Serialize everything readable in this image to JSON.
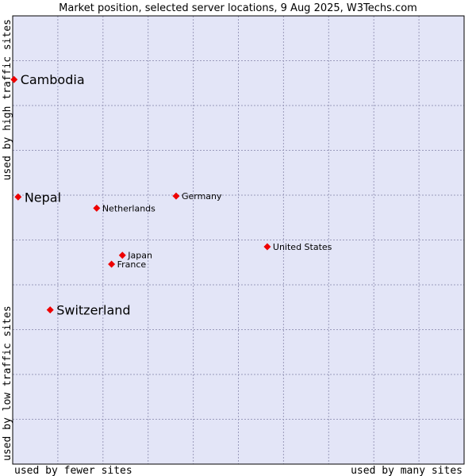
{
  "chart_data": {
    "type": "scatter",
    "title": "Market position, selected server locations, 9 Aug 2025, W3Techs.com",
    "xlabel_left": "used by fewer sites",
    "xlabel_right": "used by many sites",
    "ylabel_bottom": "used by low traffic sites",
    "ylabel_top": "used by high traffic sites",
    "xlim": [
      0,
      100
    ],
    "ylim": [
      0,
      100
    ],
    "grid": true,
    "colors": {
      "plot_bg": "#e3e5f7",
      "grid": "#9a9abb",
      "point": "#ee0000",
      "border": "#000000"
    },
    "points": [
      {
        "label": "Cambodia",
        "x": 0.3,
        "y": 85.8,
        "highlight": true
      },
      {
        "label": "Nepal",
        "x": 1.2,
        "y": 59.6,
        "highlight": true
      },
      {
        "label": "Switzerland",
        "x": 8.3,
        "y": 34.4,
        "highlight": true
      },
      {
        "label": "Netherlands",
        "x": 18.6,
        "y": 57.1,
        "highlight": false
      },
      {
        "label": "Germany",
        "x": 36.2,
        "y": 59.8,
        "highlight": false
      },
      {
        "label": "Japan",
        "x": 24.3,
        "y": 46.6,
        "highlight": false
      },
      {
        "label": "France",
        "x": 21.9,
        "y": 44.6,
        "highlight": false
      },
      {
        "label": "United States",
        "x": 56.4,
        "y": 48.5,
        "highlight": false
      }
    ]
  }
}
